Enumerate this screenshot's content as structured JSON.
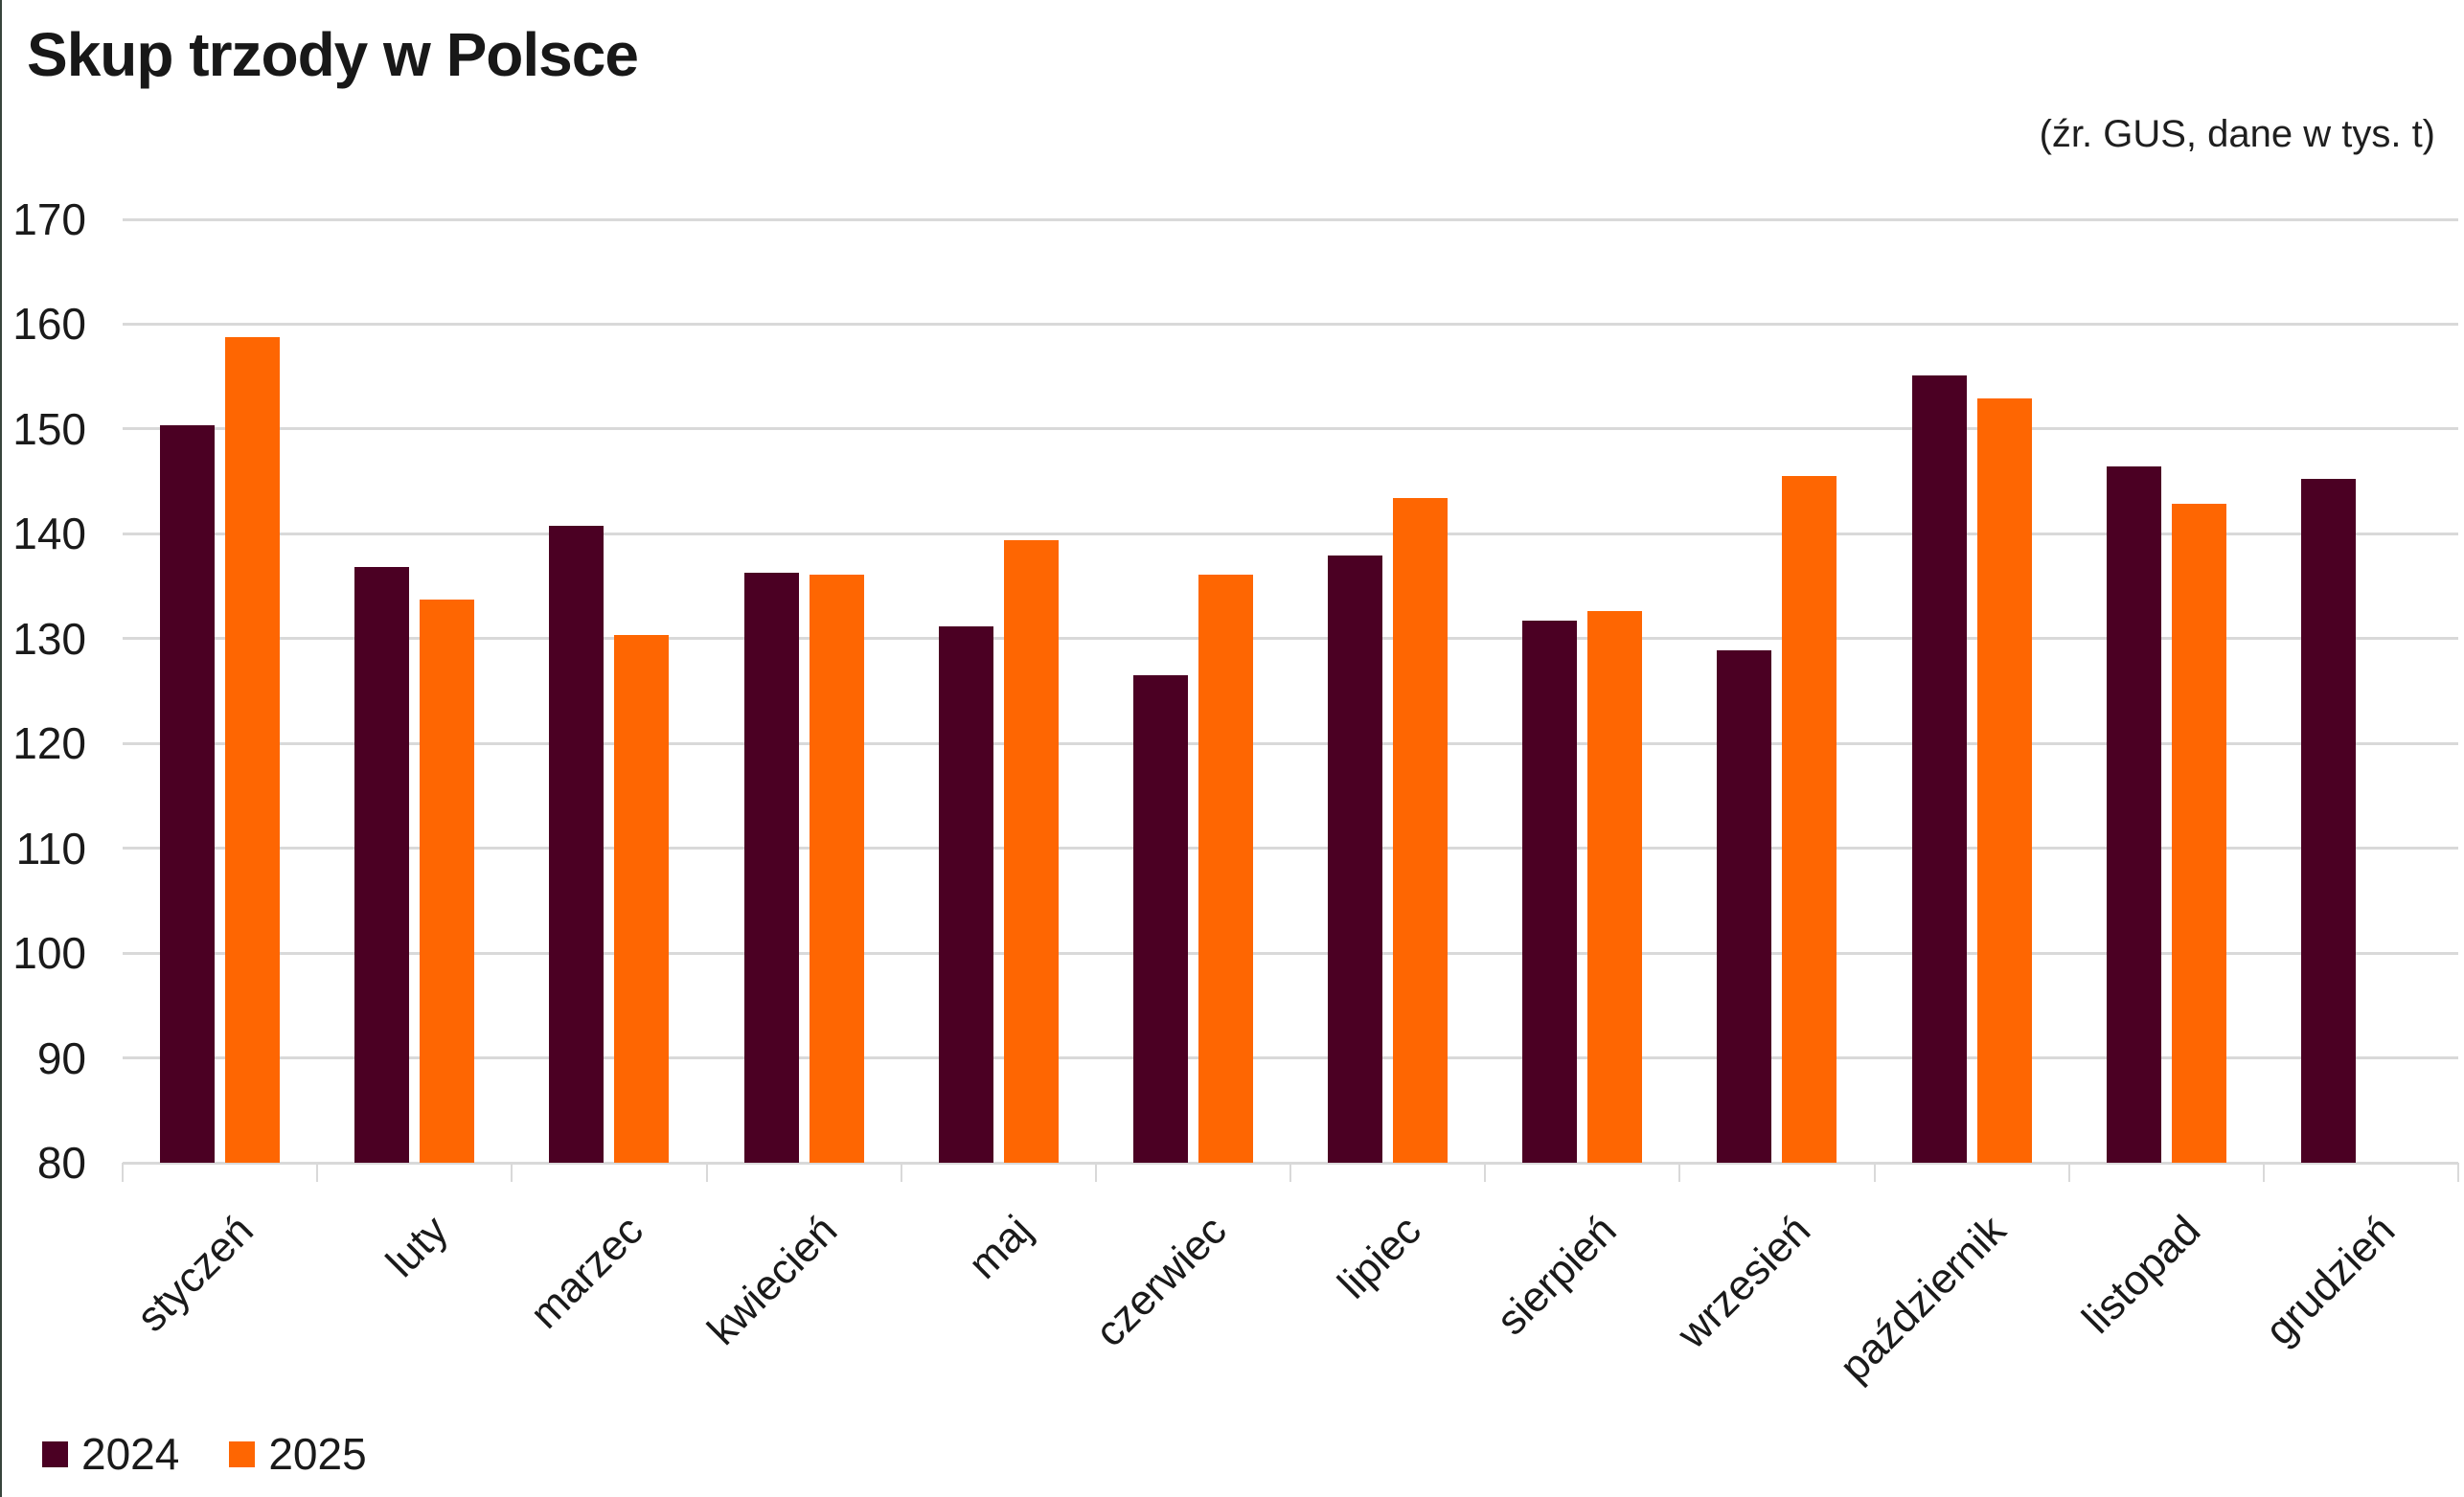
{
  "chart_data": {
    "type": "bar",
    "title": "Skup trzody w Polsce",
    "source": "(źr. GUS, dane w tys. t)",
    "unit": "tys. t",
    "categories": [
      "styczeń",
      "luty",
      "marzec",
      "kwiecień",
      "maj",
      "czerwiec",
      "lipiec",
      "sierpień",
      "wrzesień",
      "październik",
      "listopad",
      "grudzień"
    ],
    "series": [
      {
        "name": "2024",
        "color": "#4B0023",
        "values": [
          150.4,
          136.8,
          140.8,
          136.3,
          131.2,
          126.5,
          137.9,
          131.7,
          128.9,
          155.1,
          146.4,
          145.2
        ]
      },
      {
        "name": "2025",
        "color": "#FE6602",
        "values": [
          158.8,
          133.7,
          130.3,
          136.1,
          139.4,
          136.1,
          143.4,
          132.6,
          145.5,
          152.9,
          142.9,
          null
        ]
      }
    ],
    "ylim": [
      80,
      170
    ],
    "yticks": [
      80,
      90,
      100,
      110,
      120,
      130,
      140,
      150,
      160,
      170
    ],
    "grid": "horizontal",
    "legend_position": "bottom-left",
    "xlabel": "",
    "ylabel": ""
  },
  "colors": {
    "grid": "#d9d9d9",
    "text": "#1a1a1a",
    "background": "#ffffff",
    "series_2024": "#4B0023",
    "series_2025": "#FE6602"
  }
}
